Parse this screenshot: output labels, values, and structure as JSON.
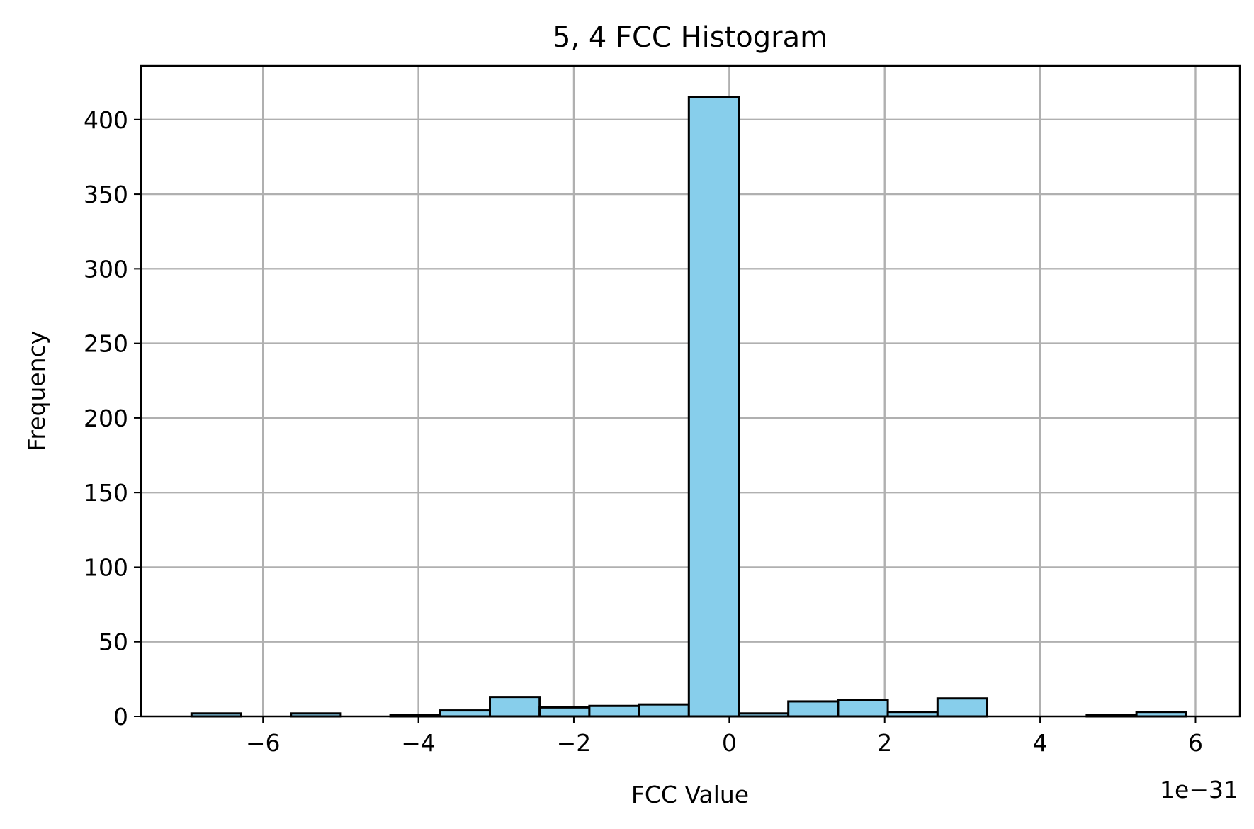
{
  "chart_data": {
    "type": "bar",
    "title": "5, 4 FCC Histogram",
    "xlabel": "FCC Value",
    "ylabel": "Frequency",
    "x_offset_text": "1e−31",
    "x_scale_exponent": -31,
    "xlim": [
      -7.57,
      6.57
    ],
    "ylim": [
      0,
      436
    ],
    "grid": true,
    "x_ticks": [
      -6,
      -4,
      -2,
      0,
      2,
      4,
      6
    ],
    "x_tick_labels": [
      "−6",
      "−4",
      "−2",
      "0",
      "2",
      "4",
      "6"
    ],
    "y_ticks": [
      0,
      50,
      100,
      150,
      200,
      250,
      300,
      350,
      400
    ],
    "y_tick_labels": [
      "0",
      "50",
      "100",
      "150",
      "200",
      "250",
      "300",
      "350",
      "400"
    ],
    "bar_color": "#87ceeb",
    "edge_color": "#000000",
    "bin_edges": [
      -6.92,
      -6.28,
      -5.64,
      -5.0,
      -4.36,
      -3.72,
      -3.08,
      -2.44,
      -1.8,
      -1.16,
      -0.52,
      0.12,
      0.76,
      1.4,
      2.04,
      2.68,
      3.32,
      3.96,
      4.6,
      5.24,
      5.88
    ],
    "values": [
      2,
      0,
      2,
      0,
      1,
      4,
      13,
      6,
      7,
      8,
      415,
      2,
      10,
      11,
      3,
      12,
      0,
      0,
      1,
      3
    ]
  }
}
